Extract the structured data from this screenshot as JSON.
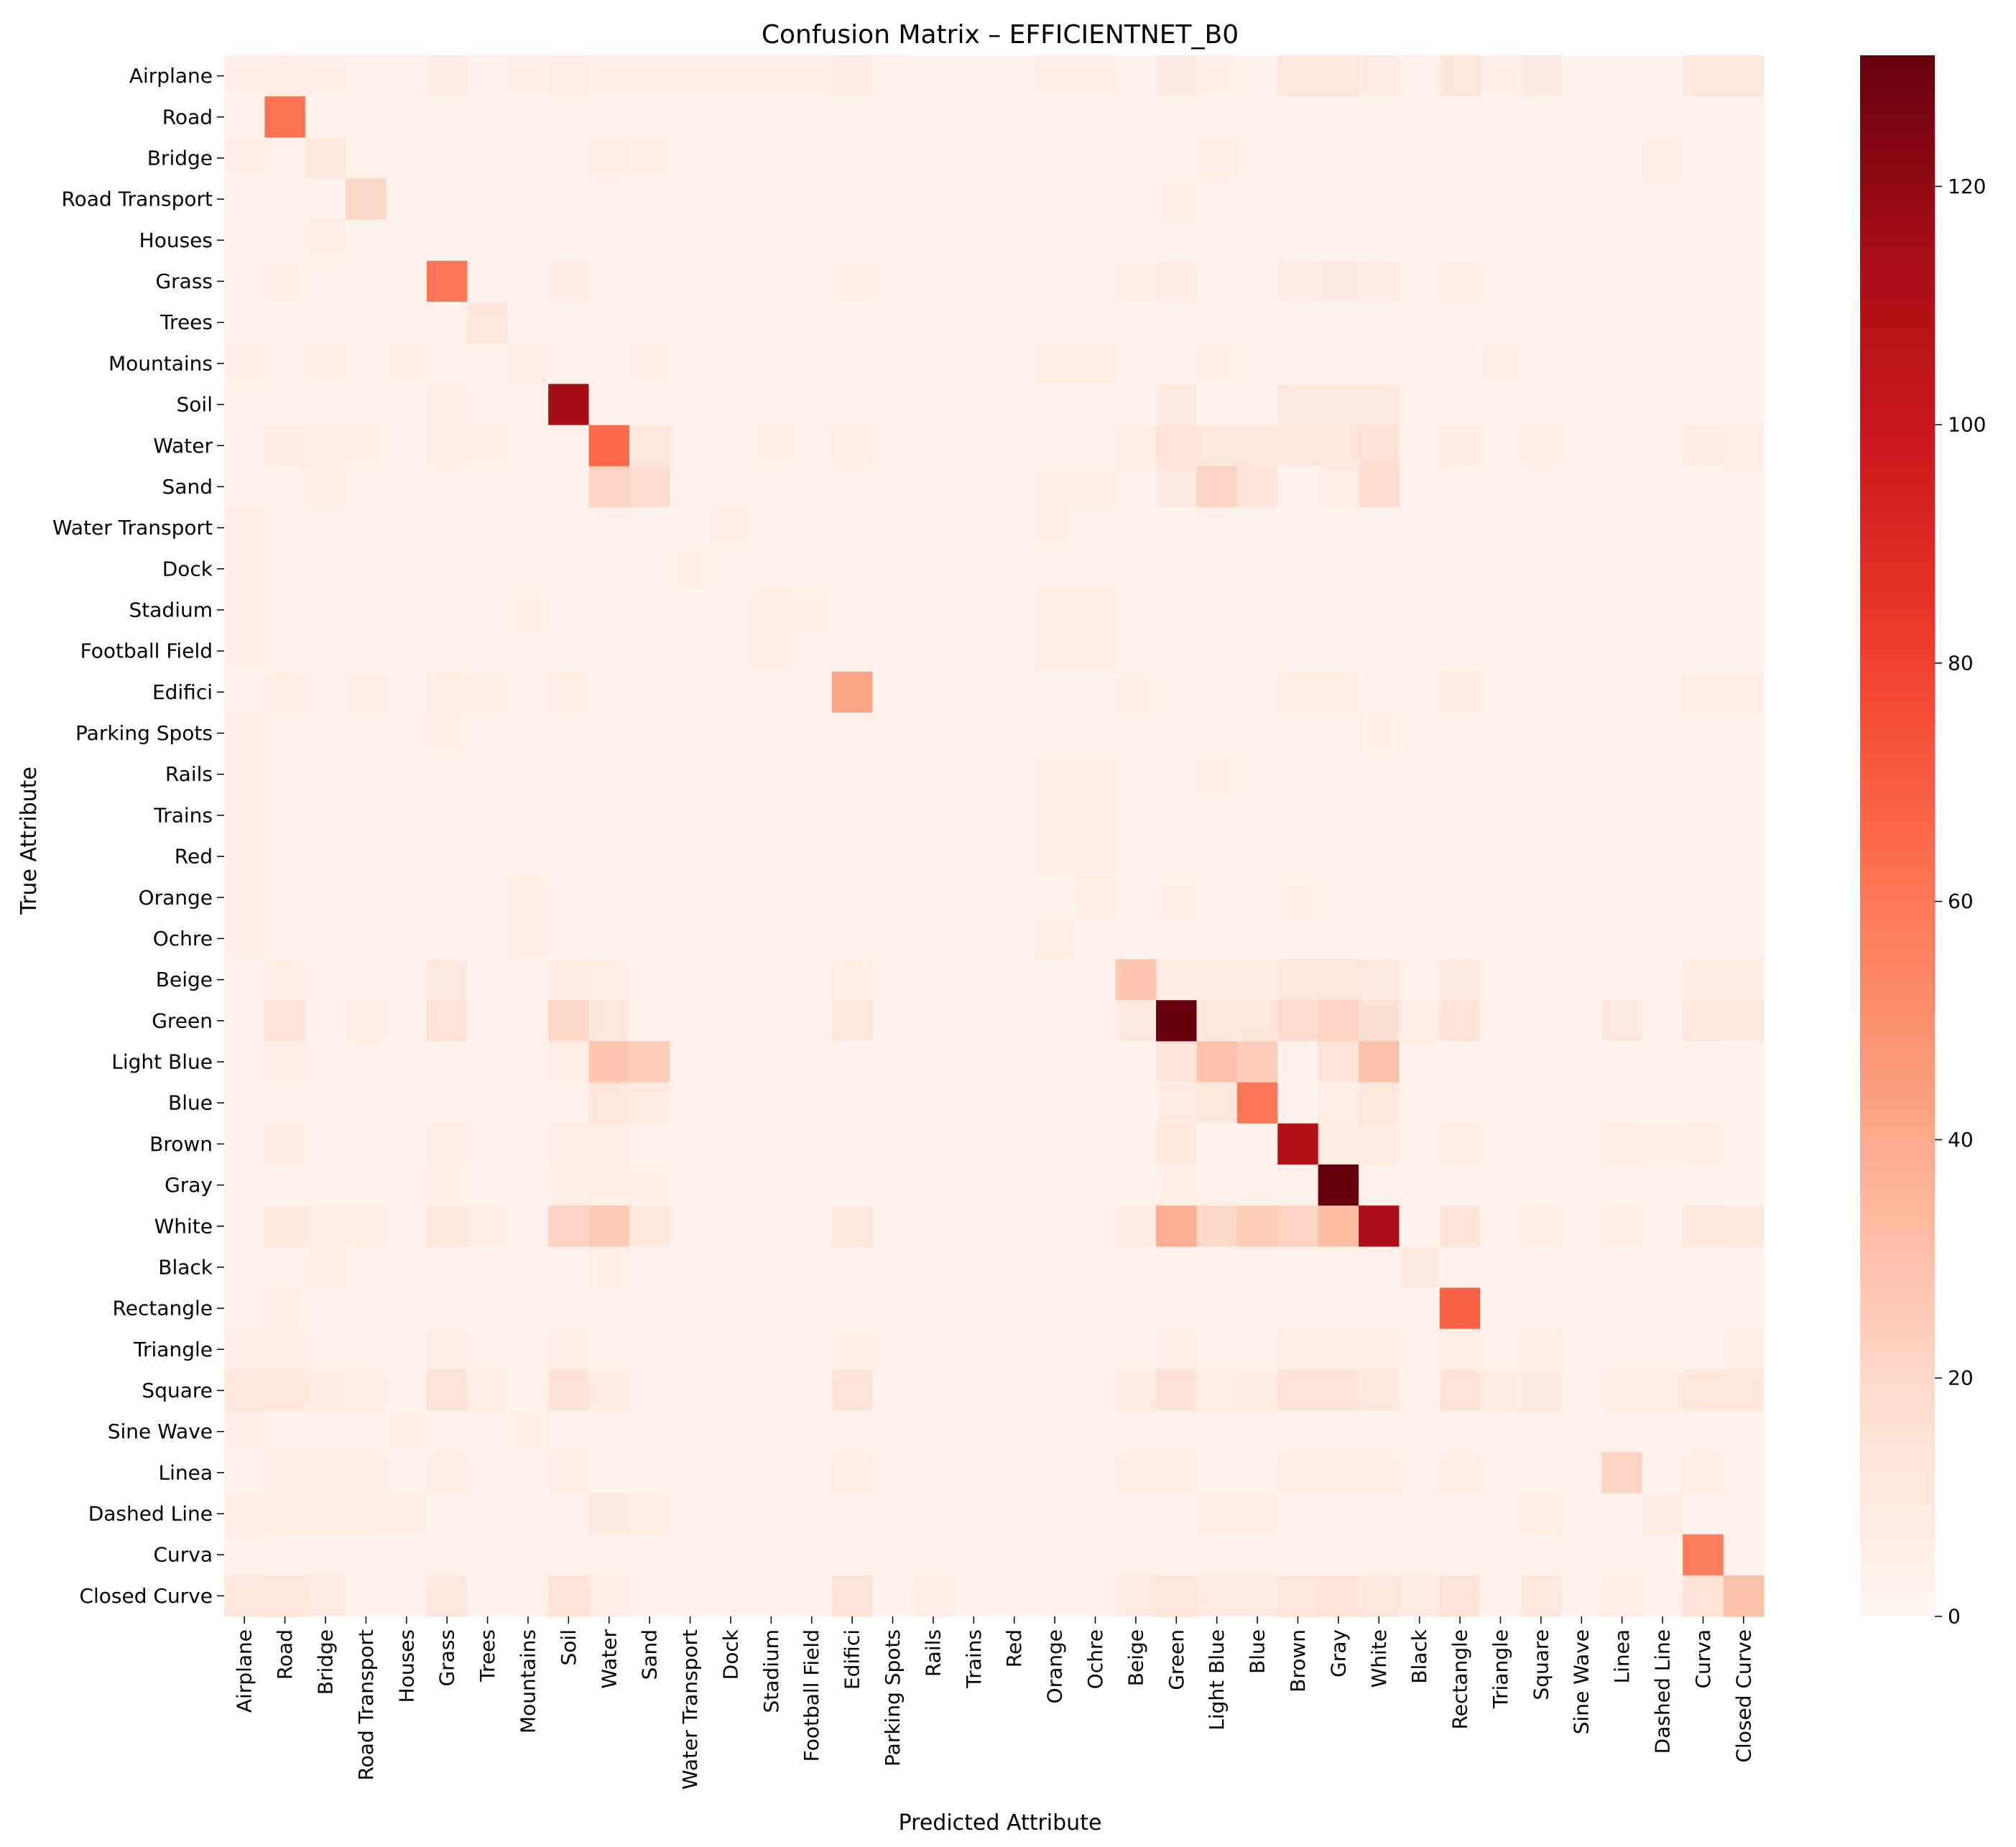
{
  "chart_data": {
    "type": "heatmap",
    "title": "Confusion Matrix – EFFICIENTNET_B0",
    "xlabel": "Predicted Attribute",
    "ylabel": "True Attribute",
    "labels": [
      "Airplane",
      "Road",
      "Bridge",
      "Road Transport",
      "Houses",
      "Grass",
      "Trees",
      "Mountains",
      "Soil",
      "Water",
      "Sand",
      "Water Transport",
      "Dock",
      "Stadium",
      "Football Field",
      "Edifici ",
      "Parking Spots",
      "Rails",
      "Trains",
      "Red",
      "Orange",
      "Ochre",
      "Beige",
      "Green",
      "Light Blue",
      "Blue",
      "Brown",
      "Gray",
      "White",
      "Black",
      "Rectangle",
      "Triangle",
      "Square",
      "Sine Wave",
      "Linea ",
      "Dashed Line",
      "Curva ",
      "Closed Curve"
    ],
    "x_tick_labels": [
      "Airplane",
      "Road",
      "Bridge",
      "Road Transport",
      "Houses",
      "Grass",
      "Trees",
      "Mountains",
      "Soil",
      "Water",
      "Sand",
      "Water Transport",
      "Dock",
      "Stadium",
      "Football Field",
      "Edifici",
      "Parking Spots",
      "Rails",
      "Trains",
      "Red",
      "Orange",
      "Ochre",
      "Beige",
      "Green",
      "Light Blue",
      "Blue",
      "Brown",
      "Gray",
      "White",
      "Black",
      "Rectangle",
      "Triangle",
      "Square",
      "Sine Wave",
      "Linea",
      "Dashed Line",
      "Curva",
      "Closed Curve"
    ],
    "vmin": 0,
    "vmax": 131,
    "colormap": "Reds",
    "colorbar_ticks": [
      0,
      20,
      40,
      60,
      80,
      100,
      120
    ],
    "background": 3,
    "cells": [
      [
        0,
        0,
        5
      ],
      [
        0,
        1,
        6
      ],
      [
        0,
        2,
        5
      ],
      [
        0,
        3,
        4
      ],
      [
        0,
        4,
        4
      ],
      [
        0,
        5,
        8
      ],
      [
        0,
        6,
        4
      ],
      [
        0,
        7,
        5
      ],
      [
        0,
        8,
        7
      ],
      [
        0,
        9,
        5
      ],
      [
        0,
        10,
        5
      ],
      [
        0,
        11,
        5
      ],
      [
        0,
        12,
        5
      ],
      [
        0,
        13,
        5
      ],
      [
        0,
        14,
        5
      ],
      [
        0,
        15,
        8
      ],
      [
        0,
        16,
        4
      ],
      [
        0,
        20,
        5
      ],
      [
        0,
        21,
        5
      ],
      [
        0,
        23,
        9
      ],
      [
        0,
        24,
        5
      ],
      [
        0,
        26,
        10
      ],
      [
        0,
        27,
        11
      ],
      [
        0,
        28,
        8
      ],
      [
        0,
        29,
        4
      ],
      [
        0,
        30,
        12
      ],
      [
        0,
        31,
        5
      ],
      [
        0,
        32,
        9
      ],
      [
        0,
        36,
        10
      ],
      [
        0,
        37,
        10
      ],
      [
        1,
        1,
        62
      ],
      [
        1,
        2,
        3
      ],
      [
        2,
        0,
        5
      ],
      [
        2,
        1,
        3
      ],
      [
        2,
        2,
        10
      ],
      [
        2,
        3,
        4
      ],
      [
        2,
        4,
        4
      ],
      [
        2,
        9,
        6
      ],
      [
        2,
        10,
        5
      ],
      [
        2,
        24,
        7
      ],
      [
        2,
        35,
        6
      ],
      [
        3,
        3,
        20
      ],
      [
        3,
        0,
        3
      ],
      [
        3,
        23,
        5
      ],
      [
        3,
        35,
        4
      ],
      [
        4,
        0,
        4
      ],
      [
        4,
        2,
        5
      ],
      [
        4,
        22,
        3
      ],
      [
        5,
        5,
        60
      ],
      [
        5,
        1,
        5
      ],
      [
        5,
        8,
        8
      ],
      [
        5,
        15,
        5
      ],
      [
        5,
        22,
        5
      ],
      [
        5,
        23,
        8
      ],
      [
        5,
        26,
        8
      ],
      [
        5,
        27,
        9
      ],
      [
        5,
        28,
        8
      ],
      [
        5,
        30,
        6
      ],
      [
        6,
        6,
        12
      ],
      [
        6,
        0,
        3
      ],
      [
        7,
        0,
        5
      ],
      [
        7,
        2,
        5
      ],
      [
        7,
        4,
        5
      ],
      [
        7,
        7,
        6
      ],
      [
        7,
        10,
        5
      ],
      [
        7,
        20,
        7
      ],
      [
        7,
        21,
        7
      ],
      [
        7,
        24,
        5
      ],
      [
        7,
        31,
        5
      ],
      [
        8,
        8,
        115
      ],
      [
        8,
        0,
        4
      ],
      [
        8,
        5,
        6
      ],
      [
        8,
        23,
        9
      ],
      [
        8,
        26,
        9
      ],
      [
        8,
        27,
        9
      ],
      [
        8,
        28,
        9
      ],
      [
        9,
        9,
        66
      ],
      [
        9,
        1,
        8
      ],
      [
        9,
        2,
        5
      ],
      [
        9,
        3,
        5
      ],
      [
        9,
        5,
        7
      ],
      [
        9,
        6,
        5
      ],
      [
        9,
        10,
        12
      ],
      [
        9,
        13,
        5
      ],
      [
        9,
        15,
        7
      ],
      [
        9,
        22,
        7
      ],
      [
        9,
        23,
        13
      ],
      [
        9,
        24,
        11
      ],
      [
        9,
        25,
        10
      ],
      [
        9,
        26,
        10
      ],
      [
        9,
        27,
        10
      ],
      [
        9,
        28,
        15
      ],
      [
        9,
        30,
        8
      ],
      [
        9,
        32,
        6
      ],
      [
        9,
        36,
        8
      ],
      [
        9,
        37,
        6
      ],
      [
        10,
        9,
        22
      ],
      [
        10,
        10,
        18
      ],
      [
        10,
        2,
        5
      ],
      [
        10,
        23,
        9
      ],
      [
        10,
        24,
        22
      ],
      [
        10,
        25,
        14
      ],
      [
        10,
        27,
        7
      ],
      [
        10,
        28,
        18
      ],
      [
        10,
        20,
        5
      ],
      [
        10,
        21,
        5
      ],
      [
        11,
        12,
        5
      ],
      [
        11,
        0,
        5
      ],
      [
        11,
        20,
        5
      ],
      [
        12,
        11,
        5
      ],
      [
        12,
        12,
        2
      ],
      [
        12,
        0,
        5
      ],
      [
        13,
        13,
        6
      ],
      [
        13,
        14,
        5
      ],
      [
        13,
        0,
        5
      ],
      [
        13,
        7,
        5
      ],
      [
        13,
        20,
        6
      ],
      [
        13,
        21,
        6
      ],
      [
        14,
        13,
        6
      ],
      [
        14,
        14,
        3
      ],
      [
        14,
        0,
        5
      ],
      [
        14,
        20,
        6
      ],
      [
        14,
        21,
        6
      ],
      [
        15,
        15,
        42
      ],
      [
        15,
        1,
        7
      ],
      [
        15,
        3,
        6
      ],
      [
        15,
        5,
        7
      ],
      [
        15,
        6,
        5
      ],
      [
        15,
        8,
        7
      ],
      [
        15,
        22,
        5
      ],
      [
        15,
        26,
        7
      ],
      [
        15,
        27,
        7
      ],
      [
        15,
        30,
        8
      ],
      [
        15,
        36,
        6
      ],
      [
        15,
        37,
        6
      ],
      [
        16,
        0,
        5
      ],
      [
        16,
        5,
        5
      ],
      [
        16,
        16,
        4
      ],
      [
        16,
        28,
        5
      ],
      [
        17,
        0,
        5
      ],
      [
        17,
        20,
        5
      ],
      [
        17,
        21,
        5
      ],
      [
        17,
        24,
        5
      ],
      [
        18,
        0,
        5
      ],
      [
        18,
        18,
        2
      ],
      [
        18,
        20,
        5
      ],
      [
        18,
        21,
        5
      ],
      [
        19,
        0,
        5
      ],
      [
        19,
        20,
        5
      ],
      [
        19,
        21,
        5
      ],
      [
        20,
        0,
        5
      ],
      [
        20,
        7,
        7
      ],
      [
        20,
        20,
        2
      ],
      [
        20,
        21,
        7
      ],
      [
        20,
        23,
        5
      ],
      [
        20,
        26,
        5
      ],
      [
        21,
        0,
        5
      ],
      [
        21,
        7,
        6
      ],
      [
        21,
        20,
        7
      ],
      [
        21,
        21,
        3
      ],
      [
        21,
        8,
        3
      ],
      [
        22,
        22,
        28
      ],
      [
        22,
        1,
        7
      ],
      [
        22,
        5,
        9
      ],
      [
        22,
        8,
        8
      ],
      [
        22,
        9,
        7
      ],
      [
        22,
        13,
        4
      ],
      [
        22,
        15,
        7
      ],
      [
        22,
        23,
        8
      ],
      [
        22,
        24,
        8
      ],
      [
        22,
        25,
        8
      ],
      [
        22,
        26,
        10
      ],
      [
        22,
        27,
        11
      ],
      [
        22,
        28,
        9
      ],
      [
        22,
        30,
        9
      ],
      [
        22,
        36,
        8
      ],
      [
        22,
        37,
        8
      ],
      [
        23,
        23,
        131
      ],
      [
        23,
        1,
        14
      ],
      [
        23,
        3,
        7
      ],
      [
        23,
        5,
        14
      ],
      [
        23,
        8,
        20
      ],
      [
        23,
        9,
        10
      ],
      [
        23,
        15,
        11
      ],
      [
        23,
        22,
        9
      ],
      [
        23,
        24,
        10
      ],
      [
        23,
        25,
        12
      ],
      [
        23,
        26,
        18
      ],
      [
        23,
        27,
        22
      ],
      [
        23,
        28,
        16
      ],
      [
        23,
        29,
        7
      ],
      [
        23,
        30,
        14
      ],
      [
        23,
        34,
        9
      ],
      [
        23,
        36,
        12
      ],
      [
        23,
        37,
        11
      ],
      [
        24,
        24,
        30
      ],
      [
        24,
        9,
        28
      ],
      [
        24,
        10,
        24
      ],
      [
        24,
        25,
        24
      ],
      [
        24,
        28,
        30
      ],
      [
        24,
        23,
        13
      ],
      [
        24,
        27,
        14
      ],
      [
        24,
        1,
        6
      ],
      [
        24,
        8,
        6
      ],
      [
        25,
        25,
        60
      ],
      [
        25,
        9,
        12
      ],
      [
        25,
        10,
        8
      ],
      [
        25,
        23,
        8
      ],
      [
        25,
        24,
        11
      ],
      [
        25,
        27,
        6
      ],
      [
        25,
        28,
        11
      ],
      [
        26,
        26,
        110
      ],
      [
        26,
        1,
        8
      ],
      [
        26,
        5,
        6
      ],
      [
        26,
        8,
        7
      ],
      [
        26,
        9,
        7
      ],
      [
        26,
        23,
        10
      ],
      [
        26,
        27,
        8
      ],
      [
        26,
        28,
        8
      ],
      [
        26,
        30,
        6
      ],
      [
        26,
        34,
        6
      ],
      [
        26,
        35,
        5
      ],
      [
        26,
        36,
        6
      ],
      [
        27,
        27,
        131
      ],
      [
        27,
        5,
        5
      ],
      [
        27,
        8,
        5
      ],
      [
        27,
        9,
        5
      ],
      [
        27,
        10,
        5
      ],
      [
        27,
        23,
        5
      ],
      [
        28,
        28,
        112
      ],
      [
        28,
        1,
        11
      ],
      [
        28,
        2,
        7
      ],
      [
        28,
        3,
        7
      ],
      [
        28,
        5,
        10
      ],
      [
        28,
        6,
        6
      ],
      [
        28,
        8,
        22
      ],
      [
        28,
        9,
        26
      ],
      [
        28,
        10,
        12
      ],
      [
        28,
        15,
        10
      ],
      [
        28,
        22,
        8
      ],
      [
        28,
        23,
        38
      ],
      [
        28,
        24,
        20
      ],
      [
        28,
        25,
        25
      ],
      [
        28,
        26,
        22
      ],
      [
        28,
        27,
        32
      ],
      [
        28,
        30,
        13
      ],
      [
        28,
        32,
        6
      ],
      [
        28,
        34,
        6
      ],
      [
        28,
        36,
        12
      ],
      [
        28,
        37,
        10
      ],
      [
        29,
        29,
        9
      ],
      [
        29,
        2,
        5
      ],
      [
        29,
        9,
        5
      ],
      [
        30,
        30,
        68
      ],
      [
        30,
        1,
        5
      ],
      [
        31,
        0,
        6
      ],
      [
        31,
        1,
        6
      ],
      [
        31,
        5,
        6
      ],
      [
        31,
        8,
        6
      ],
      [
        31,
        15,
        5
      ],
      [
        31,
        23,
        7
      ],
      [
        31,
        26,
        7
      ],
      [
        31,
        27,
        7
      ],
      [
        31,
        28,
        7
      ],
      [
        31,
        30,
        6
      ],
      [
        31,
        32,
        7
      ],
      [
        31,
        37,
        7
      ],
      [
        32,
        0,
        10
      ],
      [
        32,
        1,
        12
      ],
      [
        32,
        2,
        8
      ],
      [
        32,
        3,
        6
      ],
      [
        32,
        5,
        13
      ],
      [
        32,
        6,
        7
      ],
      [
        32,
        8,
        15
      ],
      [
        32,
        9,
        8
      ],
      [
        32,
        15,
        13
      ],
      [
        32,
        22,
        8
      ],
      [
        32,
        23,
        15
      ],
      [
        32,
        24,
        6
      ],
      [
        32,
        25,
        8
      ],
      [
        32,
        26,
        14
      ],
      [
        32,
        27,
        14
      ],
      [
        32,
        28,
        10
      ],
      [
        32,
        30,
        14
      ],
      [
        32,
        31,
        8
      ],
      [
        32,
        32,
        9
      ],
      [
        32,
        34,
        6
      ],
      [
        32,
        35,
        6
      ],
      [
        32,
        36,
        12
      ],
      [
        32,
        37,
        12
      ],
      [
        33,
        0,
        5
      ],
      [
        33,
        1,
        3
      ],
      [
        33,
        3,
        3
      ],
      [
        33,
        4,
        5
      ],
      [
        33,
        7,
        5
      ],
      [
        34,
        34,
        22
      ],
      [
        34,
        1,
        7
      ],
      [
        34,
        2,
        6
      ],
      [
        34,
        3,
        7
      ],
      [
        34,
        5,
        6
      ],
      [
        34,
        8,
        7
      ],
      [
        34,
        15,
        7
      ],
      [
        34,
        22,
        6
      ],
      [
        34,
        23,
        7
      ],
      [
        34,
        26,
        7
      ],
      [
        34,
        27,
        7
      ],
      [
        34,
        28,
        7
      ],
      [
        34,
        30,
        6
      ],
      [
        34,
        36,
        6
      ],
      [
        35,
        0,
        7
      ],
      [
        35,
        1,
        7
      ],
      [
        35,
        2,
        7
      ],
      [
        35,
        3,
        7
      ],
      [
        35,
        4,
        6
      ],
      [
        35,
        9,
        9
      ],
      [
        35,
        10,
        7
      ],
      [
        35,
        32,
        7
      ],
      [
        35,
        35,
        8
      ],
      [
        35,
        24,
        6
      ],
      [
        35,
        25,
        6
      ],
      [
        36,
        36,
        58
      ],
      [
        36,
        0,
        4
      ],
      [
        37,
        37,
        30
      ],
      [
        37,
        0,
        10
      ],
      [
        37,
        1,
        12
      ],
      [
        37,
        2,
        8
      ],
      [
        37,
        5,
        11
      ],
      [
        37,
        8,
        14
      ],
      [
        37,
        9,
        7
      ],
      [
        37,
        15,
        13
      ],
      [
        37,
        17,
        7
      ],
      [
        37,
        22,
        8
      ],
      [
        37,
        23,
        12
      ],
      [
        37,
        24,
        8
      ],
      [
        37,
        25,
        8
      ],
      [
        37,
        26,
        12
      ],
      [
        37,
        27,
        14
      ],
      [
        37,
        28,
        11
      ],
      [
        37,
        29,
        8
      ],
      [
        37,
        30,
        13
      ],
      [
        37,
        32,
        10
      ],
      [
        37,
        34,
        7
      ],
      [
        37,
        36,
        14
      ]
    ]
  }
}
